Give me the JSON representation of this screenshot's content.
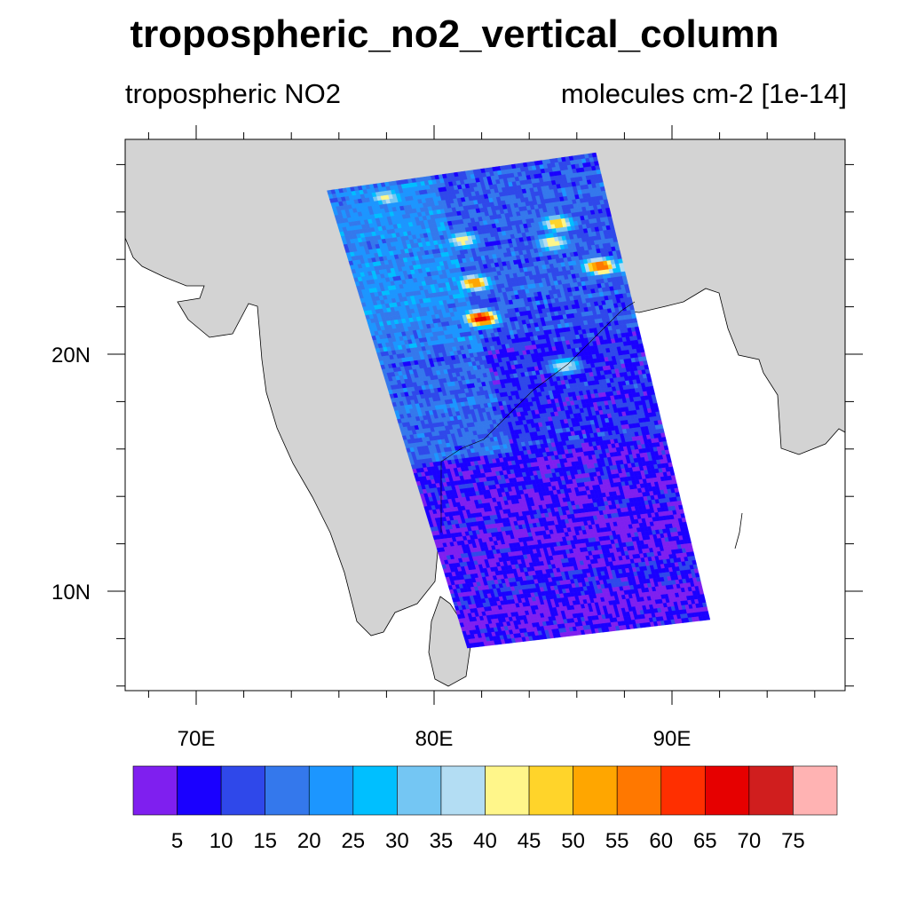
{
  "title": "tropospheric_no2_vertical_column",
  "subtitle_left": "tropospheric NO2",
  "subtitle_right": "molecules cm-2 [1e-14]",
  "chart_data": {
    "type": "heatmap",
    "projection": "cylindrical equidistant",
    "lon_range": [
      67,
      97.3
    ],
    "lat_range": [
      5.8,
      29.1
    ],
    "x_ticks": [
      "70E",
      "80E",
      "90E"
    ],
    "y_ticks": [
      "10N",
      "20N"
    ],
    "land_color": "#d3d3d3",
    "swath_corners_lonlat": [
      [
        75.5,
        26.9
      ],
      [
        86.8,
        28.5
      ],
      [
        91.6,
        8.8
      ],
      [
        81.4,
        7.6
      ]
    ],
    "hotspots": [
      {
        "lon": 82.0,
        "lat": 21.5,
        "value": 70
      },
      {
        "lon": 81.7,
        "lat": 23.0,
        "value": 55
      },
      {
        "lon": 81.2,
        "lat": 24.8,
        "value": 45
      },
      {
        "lon": 85.0,
        "lat": 24.7,
        "value": 45
      },
      {
        "lon": 87.0,
        "lat": 23.7,
        "value": 62
      },
      {
        "lon": 88.4,
        "lat": 23.7,
        "value": 55
      },
      {
        "lon": 85.2,
        "lat": 25.5,
        "value": 50
      },
      {
        "lon": 85.5,
        "lat": 19.5,
        "value": 40
      },
      {
        "lon": 78.0,
        "lat": 26.6,
        "value": 42
      }
    ],
    "colorbar": {
      "labels": [
        "5",
        "10",
        "15",
        "20",
        "25",
        "30",
        "35",
        "40",
        "45",
        "50",
        "55",
        "60",
        "65",
        "70",
        "75"
      ],
      "colors": [
        "#7f1fef",
        "#1a00ff",
        "#2f48ea",
        "#3478ec",
        "#1c96ff",
        "#00bfff",
        "#74c6f3",
        "#b3ddf3",
        "#fff68a",
        "#ffd42a",
        "#ffa600",
        "#ff7800",
        "#ff2f00",
        "#e60000",
        "#d01e1e",
        "#ffb3b3"
      ]
    }
  }
}
